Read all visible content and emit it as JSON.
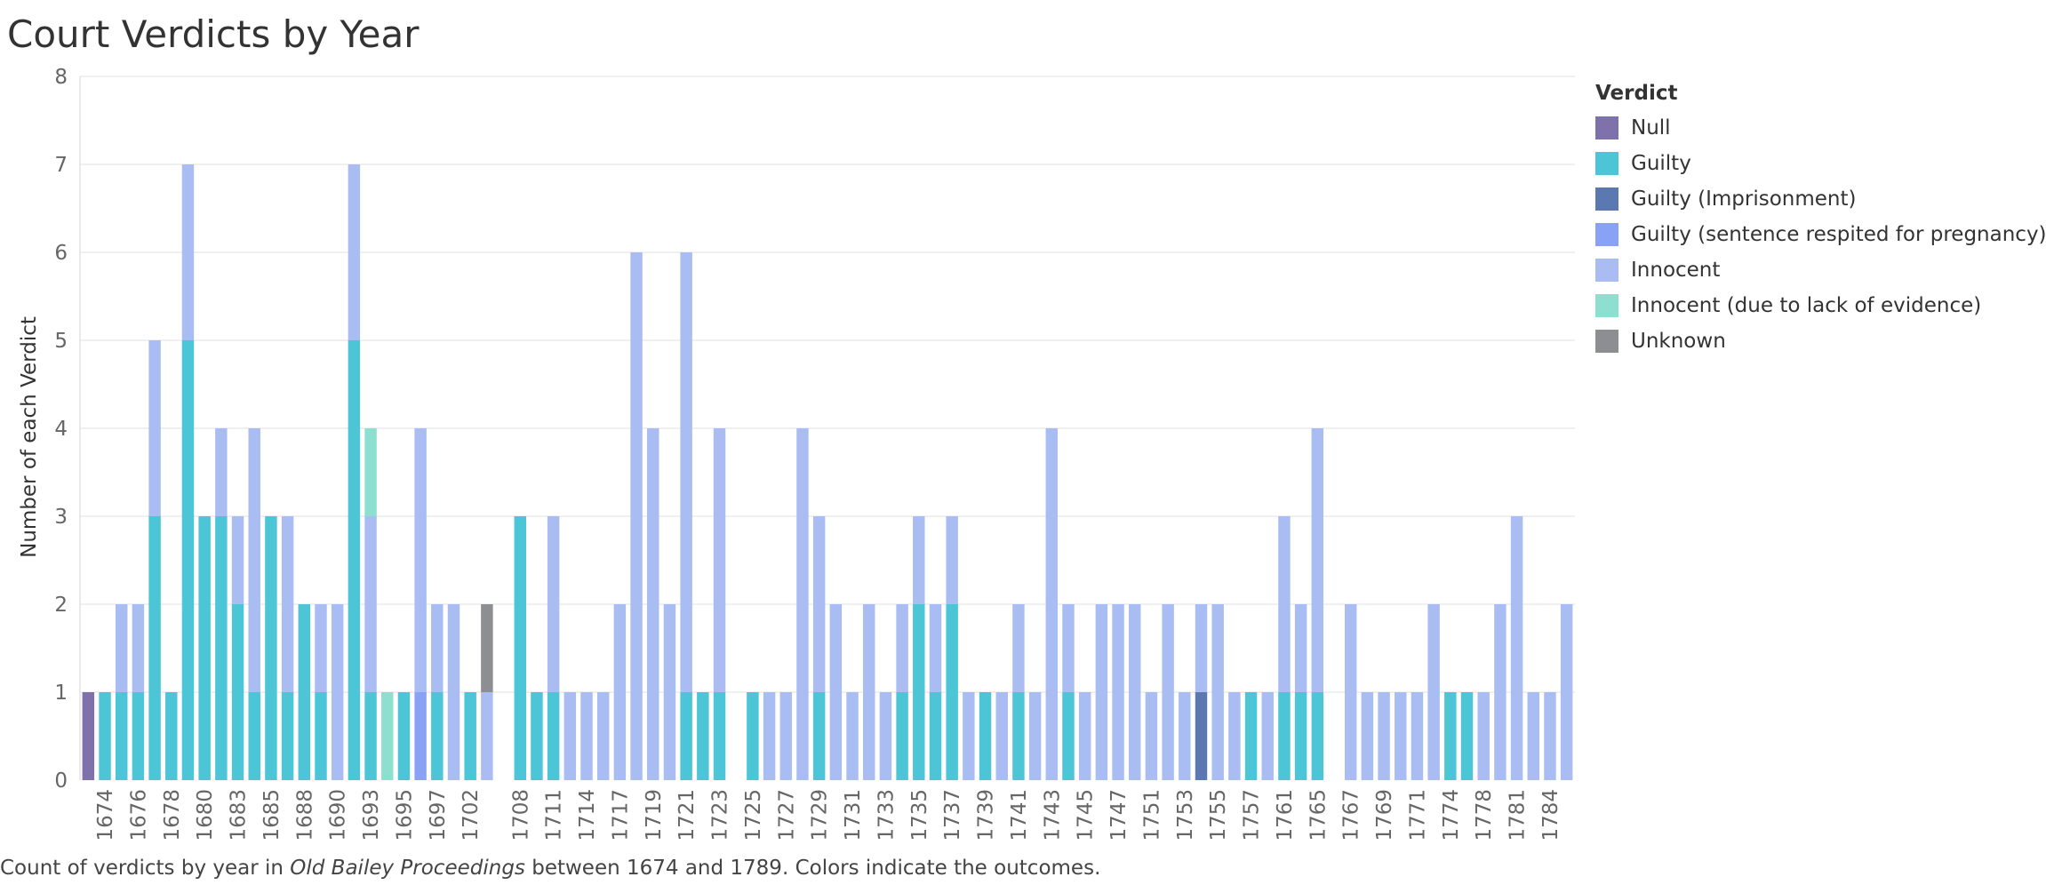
{
  "chart_data": {
    "type": "bar",
    "stacked": true,
    "title": "Court Verdicts by Year",
    "ylabel": "Number of each Verdict",
    "xlabel": "",
    "ylim": [
      0,
      8
    ],
    "yticks": [
      0,
      1,
      2,
      3,
      4,
      5,
      6,
      7,
      8
    ],
    "grid": true,
    "legend_position": "right",
    "legend_title": "Verdict",
    "caption_pre": "Count of verdicts by year in ",
    "caption_em": "Old Bailey Proceedings",
    "caption_post": " between 1674 and 1789. Colors indicate the outcomes.",
    "categories": [
      "1673",
      "1674",
      "1675",
      "1676",
      "1677",
      "1678",
      "1679",
      "1680",
      "1681",
      "1683",
      "1684",
      "1685",
      "1687",
      "1688",
      "1689",
      "1690",
      "1692",
      "1693",
      "1694",
      "1695",
      "1696",
      "1697",
      "1698",
      "1702",
      "1704",
      "1707",
      "1708",
      "1710",
      "1711",
      "1713",
      "1714",
      "1716",
      "1717",
      "1718",
      "1719",
      "1720",
      "1721",
      "1722",
      "1723",
      "1724",
      "1725",
      "1726",
      "1727",
      "1728",
      "1729",
      "1730",
      "1731",
      "1732",
      "1733",
      "1734",
      "1735",
      "1736",
      "1737",
      "1738",
      "1739",
      "1740",
      "1741",
      "1742",
      "1743",
      "1744",
      "1745",
      "1746",
      "1747",
      "1748",
      "1751",
      "1752",
      "1753",
      "1754",
      "1755",
      "1756",
      "1757",
      "1759",
      "1761",
      "1762",
      "1765",
      "1766",
      "1767",
      "1768",
      "1769",
      "1770",
      "1771",
      "1772",
      "1774",
      "1775",
      "1778",
      "1779",
      "1781",
      "1782",
      "1784",
      "1789"
    ],
    "tick_labels": [
      "1674",
      "1676",
      "1678",
      "1680",
      "1683",
      "1685",
      "1688",
      "1690",
      "1693",
      "1695",
      "1697",
      "1702",
      "1708",
      "1711",
      "1714",
      "1717",
      "1719",
      "1721",
      "1723",
      "1725",
      "1727",
      "1729",
      "1731",
      "1733",
      "1735",
      "1737",
      "1739",
      "1741",
      "1743",
      "1745",
      "1747",
      "1751",
      "1753",
      "1755",
      "1757",
      "1761",
      "1765",
      "1767",
      "1769",
      "1771",
      "1774",
      "1778",
      "1781",
      "1784"
    ],
    "series": [
      {
        "name": "Null",
        "color": "#7f72aa",
        "values": [
          1,
          0,
          0,
          0,
          0,
          0,
          0,
          0,
          0,
          0,
          0,
          0,
          0,
          0,
          0,
          0,
          0,
          0,
          0,
          0,
          0,
          0,
          0,
          0,
          0,
          0,
          0,
          0,
          0,
          0,
          0,
          0,
          0,
          0,
          0,
          0,
          0,
          0,
          0,
          0,
          0,
          0,
          0,
          0,
          0,
          0,
          0,
          0,
          0,
          0,
          0,
          0,
          0,
          0,
          0,
          0,
          0,
          0,
          0,
          0,
          0,
          0,
          0,
          0,
          0,
          0,
          0,
          0,
          0,
          0,
          0,
          0,
          0,
          0,
          0,
          0,
          0,
          0,
          0,
          0,
          0,
          0,
          0,
          0,
          0,
          0,
          0,
          0,
          0,
          0
        ]
      },
      {
        "name": "Guilty",
        "color": "#4cc6d6",
        "values": [
          0,
          1,
          1,
          1,
          3,
          1,
          5,
          3,
          3,
          2,
          1,
          3,
          1,
          2,
          1,
          0,
          5,
          1,
          0,
          1,
          0,
          1,
          0,
          1,
          0,
          0,
          3,
          1,
          1,
          0,
          0,
          0,
          0,
          0,
          0,
          0,
          1,
          1,
          1,
          0,
          1,
          0,
          0,
          0,
          1,
          0,
          0,
          0,
          0,
          1,
          2,
          1,
          2,
          0,
          1,
          0,
          1,
          0,
          0,
          1,
          0,
          0,
          0,
          0,
          0,
          0,
          0,
          0,
          0,
          0,
          1,
          0,
          1,
          1,
          1,
          0,
          0,
          0,
          0,
          0,
          0,
          0,
          1,
          1,
          0,
          0,
          0,
          0,
          0,
          0
        ]
      },
      {
        "name": "Guilty (Imprisonment)",
        "color": "#5c78b0",
        "values": [
          0,
          0,
          0,
          0,
          0,
          0,
          0,
          0,
          0,
          0,
          0,
          0,
          0,
          0,
          0,
          0,
          0,
          0,
          0,
          0,
          0,
          0,
          0,
          0,
          0,
          0,
          0,
          0,
          0,
          0,
          0,
          0,
          0,
          0,
          0,
          0,
          0,
          0,
          0,
          0,
          0,
          0,
          0,
          0,
          0,
          0,
          0,
          0,
          0,
          0,
          0,
          0,
          0,
          0,
          0,
          0,
          0,
          0,
          0,
          0,
          0,
          0,
          0,
          0,
          0,
          0,
          0,
          1,
          0,
          0,
          0,
          0,
          0,
          0,
          0,
          0,
          0,
          0,
          0,
          0,
          0,
          0,
          0,
          0,
          0,
          0,
          0,
          0,
          0,
          0
        ]
      },
      {
        "name": "Guilty (sentence respited for pregnancy)",
        "color": "#8aa2f5",
        "values": [
          0,
          0,
          0,
          0,
          0,
          0,
          0,
          0,
          0,
          0,
          0,
          0,
          0,
          0,
          0,
          0,
          0,
          0,
          0,
          0,
          1,
          0,
          0,
          0,
          0,
          0,
          0,
          0,
          0,
          0,
          0,
          0,
          0,
          0,
          0,
          0,
          0,
          0,
          0,
          0,
          0,
          0,
          0,
          0,
          0,
          0,
          0,
          0,
          0,
          0,
          0,
          0,
          0,
          0,
          0,
          0,
          0,
          0,
          0,
          0,
          0,
          0,
          0,
          0,
          0,
          0,
          0,
          0,
          0,
          0,
          0,
          0,
          0,
          0,
          0,
          0,
          0,
          0,
          0,
          0,
          0,
          0,
          0,
          0,
          0,
          0,
          0,
          0,
          0,
          0
        ]
      },
      {
        "name": "Innocent",
        "color": "#aabdf2",
        "values": [
          0,
          0,
          1,
          1,
          2,
          0,
          2,
          0,
          1,
          1,
          3,
          0,
          2,
          0,
          1,
          2,
          2,
          2,
          0,
          0,
          3,
          1,
          2,
          0,
          1,
          0,
          0,
          0,
          2,
          1,
          1,
          1,
          2,
          6,
          4,
          2,
          5,
          0,
          3,
          0,
          0,
          1,
          1,
          4,
          2,
          2,
          1,
          2,
          1,
          1,
          1,
          1,
          1,
          1,
          0,
          1,
          1,
          1,
          4,
          1,
          1,
          2,
          2,
          2,
          1,
          2,
          1,
          1,
          2,
          1,
          0,
          1,
          2,
          1,
          3,
          0,
          2,
          1,
          1,
          1,
          1,
          2,
          0,
          0,
          1,
          2,
          3,
          1,
          1,
          2
        ]
      },
      {
        "name": "Innocent (due to lack of evidence)",
        "color": "#8de0cf",
        "values": [
          0,
          0,
          0,
          0,
          0,
          0,
          0,
          0,
          0,
          0,
          0,
          0,
          0,
          0,
          0,
          0,
          0,
          1,
          1,
          0,
          0,
          0,
          0,
          0,
          0,
          0,
          0,
          0,
          0,
          0,
          0,
          0,
          0,
          0,
          0,
          0,
          0,
          0,
          0,
          0,
          0,
          0,
          0,
          0,
          0,
          0,
          0,
          0,
          0,
          0,
          0,
          0,
          0,
          0,
          0,
          0,
          0,
          0,
          0,
          0,
          0,
          0,
          0,
          0,
          0,
          0,
          0,
          0,
          0,
          0,
          0,
          0,
          0,
          0,
          0,
          0,
          0,
          0,
          0,
          0,
          0,
          0,
          0,
          0,
          0,
          0,
          0,
          0,
          0,
          0
        ]
      },
      {
        "name": "Unknown",
        "color": "#8c8e91",
        "values": [
          0,
          0,
          0,
          0,
          0,
          0,
          0,
          0,
          0,
          0,
          0,
          0,
          0,
          0,
          0,
          0,
          0,
          0,
          0,
          0,
          0,
          0,
          0,
          0,
          1,
          0,
          0,
          0,
          0,
          0,
          0,
          0,
          0,
          0,
          0,
          0,
          0,
          0,
          0,
          0,
          0,
          0,
          0,
          0,
          0,
          0,
          0,
          0,
          0,
          0,
          0,
          0,
          0,
          0,
          0,
          0,
          0,
          0,
          0,
          0,
          0,
          0,
          0,
          0,
          0,
          0,
          0,
          0,
          0,
          0,
          0,
          0,
          0,
          0,
          0,
          0,
          0,
          0,
          0,
          0,
          0,
          0,
          0,
          0,
          0,
          0,
          0,
          0,
          0,
          0
        ]
      }
    ]
  }
}
